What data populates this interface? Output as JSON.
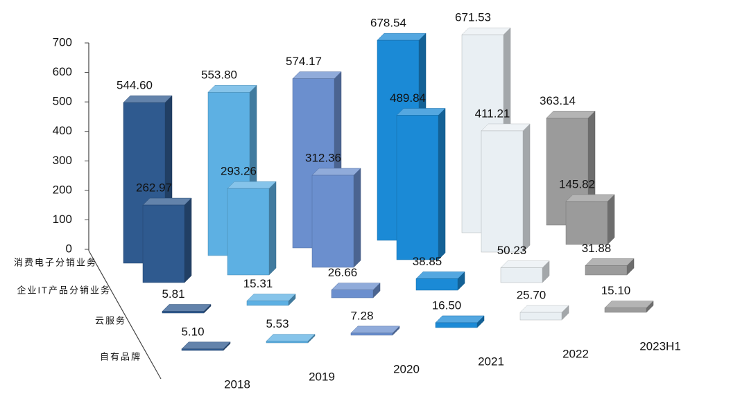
{
  "chart_data": {
    "type": "bar3d",
    "categories": [
      "2018",
      "2019",
      "2020",
      "2021",
      "2022",
      "2023H1"
    ],
    "category_colors": [
      "#2f5a8f",
      "#5db0e3",
      "#6b8fce",
      "#1b8ad6",
      "#e9eff3",
      "#9b9b9b"
    ],
    "series": [
      {
        "name": "消费电子分销业务",
        "values": [
          544.6,
          553.8,
          574.17,
          678.54,
          671.53,
          363.14
        ],
        "value_labels": [
          "544.60",
          "553.80",
          "574.17",
          "678.54",
          "671.53",
          "363.14"
        ]
      },
      {
        "name": "企业IT产品分销业务",
        "values": [
          262.97,
          293.26,
          312.36,
          489.84,
          411.21,
          145.82
        ],
        "value_labels": [
          "262.97",
          "293.26",
          "312.36",
          "489.84",
          "411.21",
          "145.82"
        ]
      },
      {
        "name": "云服务",
        "values": [
          5.81,
          15.31,
          26.66,
          38.85,
          50.23,
          31.88
        ],
        "value_labels": [
          "5.81",
          "15.31",
          "26.66",
          "38.85",
          "50.23",
          "31.88"
        ]
      },
      {
        "name": "自有品牌",
        "values": [
          5.1,
          5.53,
          7.28,
          16.5,
          25.7,
          15.1
        ],
        "value_labels": [
          "5.10",
          "5.53",
          "7.28",
          "16.50",
          "25.70",
          "15.10"
        ]
      }
    ],
    "ylim": [
      0,
      700
    ],
    "yticks": [
      0,
      100,
      200,
      300,
      400,
      500,
      600,
      700
    ]
  }
}
